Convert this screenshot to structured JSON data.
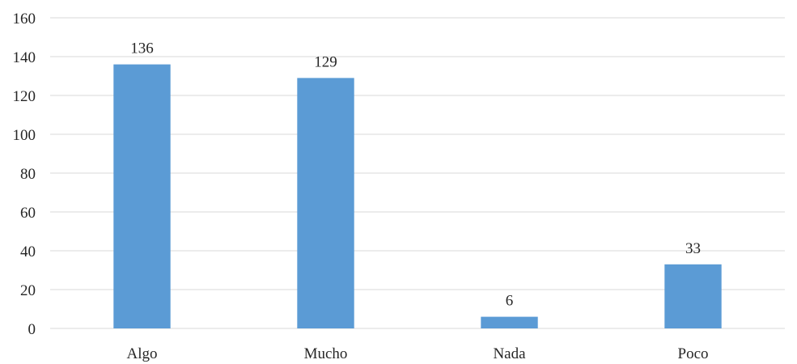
{
  "chart_data": {
    "type": "bar",
    "categories": [
      "Algo",
      "Mucho",
      "Nada",
      "Poco"
    ],
    "values": [
      136,
      129,
      6,
      33
    ],
    "data_labels": [
      "136",
      "129",
      "6",
      "33"
    ],
    "title": "",
    "xlabel": "",
    "ylabel": "",
    "ylim": [
      0,
      160
    ],
    "yticks": [
      0,
      20,
      40,
      60,
      80,
      100,
      120,
      140,
      160
    ],
    "ytick_labels": [
      "0",
      "20",
      "40",
      "60",
      "80",
      "100",
      "120",
      "140",
      "160"
    ],
    "grid": true,
    "legend": "none",
    "bar_color": "#5b9bd5"
  }
}
